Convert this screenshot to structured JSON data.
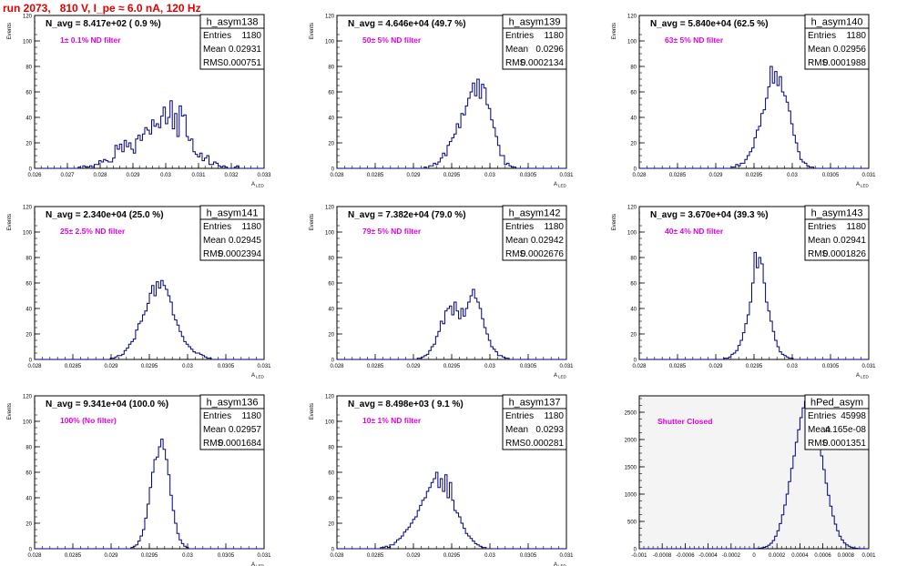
{
  "run_title": "run 2073,   810 V, I_pe ≈ 6.0 nA, 120 Hz",
  "colors": {
    "title": "#e00000",
    "annotation": "#e000e0",
    "line": "#00007f",
    "frame": "#000000"
  },
  "chart_data": [
    {
      "type": "histogram",
      "name": "h_asym138",
      "navg": "N_avg = 8.417e+02 ( 0.9 %)",
      "annotation": "1± 0.1% ND filter",
      "stats": [
        [
          "Entries",
          "1180"
        ],
        [
          "Mean",
          "0.02931"
        ],
        [
          "RMS",
          "0.000751"
        ]
      ],
      "ylabel": "Events",
      "xlabel": "A_LED",
      "xlim": [
        0.026,
        0.033
      ],
      "ylim": [
        0,
        120
      ],
      "xticks": [
        "0.026",
        "0.027",
        "0.028",
        "0.029",
        "0.03",
        "0.031",
        "0.032",
        "0.033"
      ],
      "yticks": [
        "0",
        "20",
        "40",
        "60",
        "80",
        "100",
        "120"
      ],
      "values": [
        0,
        0,
        0,
        0,
        0,
        0,
        0,
        0,
        0,
        0,
        0,
        0,
        0,
        0,
        0,
        0,
        0,
        0,
        0,
        1,
        0,
        2,
        1,
        1,
        2,
        0,
        3,
        3,
        6,
        5,
        7,
        6,
        5,
        5,
        8,
        18,
        15,
        19,
        13,
        22,
        17,
        20,
        15,
        12,
        23,
        26,
        22,
        27,
        32,
        30,
        27,
        38,
        33,
        35,
        32,
        41,
        48,
        35,
        40,
        53,
        31,
        43,
        25,
        49,
        41,
        42,
        25,
        22,
        23,
        13,
        11,
        9,
        12,
        6,
        8,
        10,
        3,
        3,
        5,
        4,
        2,
        1,
        2,
        1,
        0,
        0,
        0,
        1,
        2,
        0,
        0,
        0,
        0,
        0,
        0,
        0,
        0,
        0,
        0,
        0
      ]
    },
    {
      "type": "histogram",
      "name": "h_asym139",
      "navg": "N_avg = 4.646e+04 (49.7 %)",
      "annotation": "50± 5% ND filter",
      "stats": [
        [
          "Entries",
          "1180"
        ],
        [
          "Mean",
          "0.0296"
        ],
        [
          "RMS",
          "0.0002134"
        ]
      ],
      "ylabel": "Events",
      "xlabel": "A_LED",
      "xlim": [
        0.028,
        0.031
      ],
      "ylim": [
        0,
        120
      ],
      "xticks": [
        "0.028",
        "0.0285",
        "0.029",
        "0.0295",
        "0.03",
        "0.0305",
        "0.031"
      ],
      "yticks": [
        "0",
        "20",
        "40",
        "60",
        "80",
        "100",
        "120"
      ],
      "values": [
        0,
        0,
        0,
        0,
        0,
        0,
        0,
        0,
        0,
        0,
        0,
        0,
        0,
        0,
        0,
        0,
        0,
        0,
        0,
        0,
        0,
        0,
        0,
        0,
        0,
        0,
        0,
        0,
        0,
        0,
        0,
        0,
        0,
        0,
        0,
        0,
        0,
        0,
        1,
        0,
        2,
        2,
        4,
        3,
        5,
        8,
        12,
        10,
        18,
        21,
        24,
        27,
        35,
        32,
        43,
        42,
        49,
        55,
        60,
        67,
        57,
        70,
        55,
        66,
        63,
        50,
        47,
        38,
        32,
        25,
        18,
        10,
        10,
        3,
        4,
        2,
        1,
        1,
        0,
        0,
        0,
        0,
        0,
        0,
        0,
        0,
        0,
        0,
        0,
        0,
        0,
        0,
        0,
        0,
        0,
        0,
        0,
        0,
        0,
        0
      ]
    },
    {
      "type": "histogram",
      "name": "h_asym140",
      "navg": "N_avg = 5.840e+04 (62.5 %)",
      "annotation": "63± 5% ND filter",
      "stats": [
        [
          "Entries",
          "1180"
        ],
        [
          "Mean",
          "0.02956"
        ],
        [
          "RMS",
          "0.0001988"
        ]
      ],
      "ylabel": "Events",
      "xlabel": "A_LED",
      "xlim": [
        0.028,
        0.031
      ],
      "ylim": [
        0,
        120
      ],
      "xticks": [
        "0.028",
        "0.0285",
        "0.029",
        "0.0295",
        "0.03",
        "0.0305",
        "0.031"
      ],
      "yticks": [
        "0",
        "20",
        "40",
        "60",
        "80",
        "100",
        "120"
      ],
      "values": [
        0,
        0,
        0,
        0,
        0,
        0,
        0,
        0,
        0,
        0,
        0,
        0,
        0,
        0,
        0,
        0,
        0,
        0,
        0,
        0,
        0,
        0,
        0,
        0,
        0,
        0,
        0,
        0,
        0,
        0,
        0,
        0,
        0,
        0,
        0,
        0,
        0,
        0,
        0,
        0,
        1,
        1,
        3,
        2,
        4,
        4,
        7,
        10,
        13,
        16,
        24,
        30,
        33,
        43,
        46,
        55,
        64,
        80,
        67,
        76,
        65,
        72,
        60,
        57,
        52,
        45,
        35,
        26,
        20,
        13,
        7,
        5,
        4,
        2,
        1,
        1,
        0,
        0,
        0,
        0,
        0,
        0,
        0,
        0,
        0,
        0,
        0,
        0,
        0,
        0,
        0,
        0,
        0,
        0,
        0,
        0,
        0,
        0,
        0,
        0
      ]
    },
    {
      "type": "histogram",
      "name": "h_asym141",
      "navg": "N_avg = 2.340e+04 (25.0 %)",
      "annotation": "25± 2.5% ND filter",
      "stats": [
        [
          "Entries",
          "1180"
        ],
        [
          "Mean",
          "0.02945"
        ],
        [
          "RMS",
          "0.0002394"
        ]
      ],
      "ylabel": "Events",
      "xlabel": "A_LED",
      "xlim": [
        0.028,
        0.031
      ],
      "ylim": [
        0,
        120
      ],
      "xticks": [
        "0.028",
        "0.0285",
        "0.029",
        "0.0295",
        "0.03",
        "0.0305",
        "0.031"
      ],
      "yticks": [
        "0",
        "20",
        "40",
        "60",
        "80",
        "100",
        "120"
      ],
      "values": [
        0,
        0,
        0,
        0,
        0,
        0,
        0,
        0,
        0,
        0,
        0,
        0,
        0,
        0,
        0,
        0,
        0,
        0,
        0,
        0,
        0,
        0,
        0,
        0,
        0,
        0,
        0,
        0,
        0,
        0,
        0,
        0,
        0,
        1,
        1,
        2,
        3,
        3,
        4,
        7,
        9,
        12,
        14,
        16,
        23,
        28,
        30,
        35,
        38,
        44,
        52,
        58,
        50,
        61,
        56,
        62,
        58,
        55,
        50,
        45,
        35,
        31,
        27,
        22,
        18,
        14,
        12,
        10,
        8,
        6,
        5,
        5,
        4,
        3,
        2,
        1,
        1,
        0,
        0,
        0,
        0,
        0,
        0,
        0,
        0,
        0,
        0,
        0,
        0,
        0,
        0,
        0,
        0,
        0,
        0,
        0,
        0,
        0,
        0,
        0
      ]
    },
    {
      "type": "histogram",
      "name": "h_asym142",
      "navg": "N_avg = 7.382e+04 (79.0 %)",
      "annotation": "79± 5% ND filter",
      "stats": [
        [
          "Entries",
          "1180"
        ],
        [
          "Mean",
          "0.02942"
        ],
        [
          "RMS",
          "0.0002676"
        ]
      ],
      "ylabel": "Events",
      "xlabel": "A_LED",
      "xlim": [
        0.028,
        0.031
      ],
      "ylim": [
        0,
        120
      ],
      "xticks": [
        "0.028",
        "0.0285",
        "0.029",
        "0.0295",
        "0.03",
        "0.0305",
        "0.031"
      ],
      "yticks": [
        "0",
        "20",
        "40",
        "60",
        "80",
        "100",
        "120"
      ],
      "values": [
        0,
        0,
        0,
        0,
        0,
        0,
        0,
        0,
        0,
        0,
        0,
        0,
        0,
        0,
        0,
        0,
        0,
        0,
        0,
        0,
        0,
        0,
        0,
        0,
        0,
        0,
        0,
        0,
        0,
        0,
        0,
        0,
        0,
        0,
        0,
        1,
        1,
        2,
        3,
        4,
        7,
        10,
        12,
        18,
        22,
        30,
        28,
        38,
        40,
        42,
        35,
        45,
        38,
        32,
        40,
        34,
        40,
        45,
        50,
        55,
        48,
        45,
        40,
        32,
        25,
        20,
        15,
        10,
        8,
        6,
        3,
        3,
        2,
        1,
        1,
        0,
        0,
        0,
        0,
        0,
        0,
        0,
        0,
        0,
        0,
        0,
        0,
        0,
        0,
        0,
        0,
        0,
        0,
        0,
        0,
        0,
        0,
        0,
        0,
        0
      ]
    },
    {
      "type": "histogram",
      "name": "h_asym143",
      "navg": "N_avg = 3.670e+04 (39.3 %)",
      "annotation": "40± 4% ND filter",
      "stats": [
        [
          "Entries",
          "1180"
        ],
        [
          "Mean",
          "0.02941"
        ],
        [
          "RMS",
          "0.0001826"
        ]
      ],
      "ylabel": "Events",
      "xlabel": "A_LED",
      "xlim": [
        0.028,
        0.031
      ],
      "ylim": [
        0,
        120
      ],
      "xticks": [
        "0.028",
        "0.0285",
        "0.029",
        "0.0295",
        "0.03",
        "0.0305",
        "0.031"
      ],
      "yticks": [
        "0",
        "20",
        "40",
        "60",
        "80",
        "100",
        "120"
      ],
      "values": [
        0,
        0,
        0,
        0,
        0,
        0,
        0,
        0,
        0,
        0,
        0,
        0,
        0,
        0,
        0,
        0,
        0,
        0,
        0,
        0,
        0,
        0,
        0,
        0,
        0,
        0,
        0,
        0,
        0,
        0,
        0,
        0,
        0,
        0,
        0,
        0,
        0,
        1,
        1,
        2,
        4,
        5,
        7,
        11,
        15,
        21,
        28,
        35,
        45,
        60,
        84,
        72,
        80,
        75,
        60,
        45,
        38,
        30,
        22,
        15,
        10,
        6,
        4,
        3,
        2,
        1,
        1,
        0,
        0,
        0,
        0,
        0,
        0,
        0,
        0,
        0,
        0,
        0,
        0,
        0,
        0,
        0,
        0,
        0,
        0,
        0,
        0,
        0,
        0,
        0,
        0,
        0,
        0,
        0,
        0,
        0,
        0,
        0,
        0,
        0
      ]
    },
    {
      "type": "histogram",
      "name": "h_asym136",
      "navg": "N_avg = 9.341e+04 (100.0 %)",
      "annotation": "100% (No filter)",
      "stats": [
        [
          "Entries",
          "1180"
        ],
        [
          "Mean",
          "0.02957"
        ],
        [
          "RMS",
          "0.0001684"
        ]
      ],
      "ylabel": "Events",
      "xlabel": "A_LED",
      "xlim": [
        0.028,
        0.031
      ],
      "ylim": [
        0,
        120
      ],
      "xticks": [
        "0.028",
        "0.0285",
        "0.029",
        "0.0295",
        "0.03",
        "0.0305",
        "0.031"
      ],
      "yticks": [
        "0",
        "20",
        "40",
        "60",
        "80",
        "100",
        "120"
      ],
      "values": [
        0,
        0,
        0,
        0,
        0,
        0,
        0,
        0,
        0,
        0,
        0,
        0,
        0,
        0,
        0,
        0,
        0,
        0,
        0,
        0,
        0,
        0,
        0,
        0,
        0,
        0,
        0,
        0,
        0,
        0,
        0,
        0,
        0,
        0,
        0,
        0,
        0,
        0,
        0,
        0,
        0,
        0,
        1,
        2,
        3,
        6,
        10,
        15,
        24,
        35,
        48,
        60,
        70,
        72,
        80,
        86,
        78,
        70,
        58,
        42,
        30,
        20,
        12,
        7,
        4,
        2,
        1,
        0,
        0,
        0,
        0,
        0,
        0,
        0,
        0,
        0,
        0,
        0,
        0,
        0,
        0,
        0,
        0,
        0,
        0,
        0,
        0,
        0,
        0,
        0,
        0,
        0,
        0,
        0,
        0,
        0,
        0,
        0,
        0,
        0
      ]
    },
    {
      "type": "histogram",
      "name": "h_asym137",
      "navg": "N_avg = 8.498e+03 ( 9.1 %)",
      "annotation": "10± 1% ND filter",
      "stats": [
        [
          "Entries",
          "1180"
        ],
        [
          "Mean",
          "0.0293"
        ],
        [
          "RMS",
          "0.000281"
        ]
      ],
      "ylabel": "Events",
      "xlabel": "A_LED",
      "xlim": [
        0.028,
        0.031
      ],
      "ylim": [
        0,
        120
      ],
      "xticks": [
        "0.028",
        "0.0285",
        "0.029",
        "0.0295",
        "0.03",
        "0.0305",
        "0.031"
      ],
      "yticks": [
        "0",
        "20",
        "40",
        "60",
        "80",
        "100",
        "120"
      ],
      "values": [
        0,
        0,
        0,
        0,
        0,
        0,
        0,
        0,
        0,
        0,
        0,
        0,
        0,
        0,
        0,
        0,
        0,
        0,
        0,
        1,
        1,
        2,
        1,
        3,
        3,
        5,
        7,
        8,
        10,
        13,
        15,
        17,
        20,
        23,
        25,
        30,
        34,
        38,
        40,
        45,
        48,
        52,
        55,
        60,
        48,
        55,
        45,
        58,
        40,
        52,
        38,
        30,
        28,
        25,
        20,
        16,
        12,
        10,
        8,
        6,
        4,
        3,
        2,
        1,
        1,
        0,
        0,
        0,
        0,
        0,
        0,
        0,
        0,
        0,
        0,
        0,
        0,
        0,
        0,
        0,
        0,
        0,
        0,
        0,
        0,
        0,
        0,
        0,
        0,
        0,
        0,
        0,
        0,
        0,
        0,
        0,
        0,
        0,
        0,
        0
      ]
    },
    {
      "type": "histogram",
      "name": "hPed_asym",
      "navg": "",
      "annotation": "Shutter Closed",
      "stats": [
        [
          "Entries",
          "45998"
        ],
        [
          "Mean",
          "4.165e-08"
        ],
        [
          "RMS",
          "0.0001351"
        ]
      ],
      "ylabel": "",
      "xlabel": "",
      "xlim": [
        -0.001,
        0.001
      ],
      "ylim": [
        0,
        2800
      ],
      "xticks": [
        "-0.001",
        "-0.0008",
        "-0.0006",
        "-0.0004",
        "-0.0002",
        "0",
        "0.0002",
        "0.0004",
        "0.0006",
        "0.0008",
        "0.001"
      ],
      "yticks": [
        "0",
        "500",
        "1000",
        "1500",
        "2000",
        "2500"
      ],
      "values": [
        0,
        0,
        0,
        0,
        0,
        0,
        0,
        0,
        0,
        0,
        0,
        0,
        0,
        0,
        0,
        0,
        0,
        0,
        0,
        0,
        0,
        0,
        0,
        0,
        0,
        0,
        0,
        0,
        0,
        0,
        0,
        0,
        0,
        0,
        0,
        0,
        0,
        0,
        0,
        0,
        0,
        0,
        0,
        0,
        0,
        0,
        0,
        0,
        0,
        1,
        2,
        4,
        8,
        15,
        25,
        40,
        65,
        100,
        150,
        230,
        330,
        460,
        620,
        800,
        1000,
        1230,
        1470,
        1700,
        1950,
        2180,
        2400,
        2580,
        2700,
        2800,
        2750,
        2620,
        2430,
        2200,
        1950,
        1700,
        1450,
        1200,
        980,
        780,
        600,
        450,
        330,
        230,
        160,
        105,
        70,
        45,
        28,
        16,
        9,
        5,
        3,
        2,
        1,
        0
      ]
    }
  ]
}
